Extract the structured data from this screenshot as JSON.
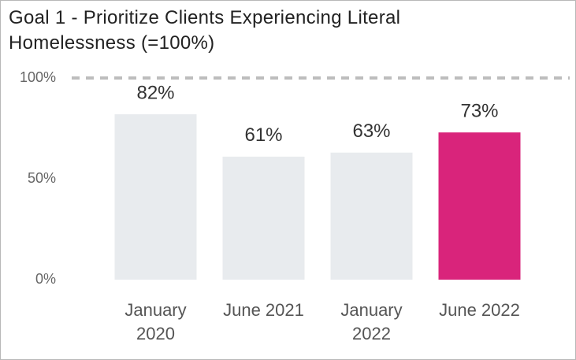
{
  "chart_data": {
    "type": "bar",
    "title": "Goal 1 - Prioritize Clients Experiencing Literal Homelessness (=100%)",
    "categories": [
      "January 2020",
      "June 2021",
      "January 2022",
      "June 2022"
    ],
    "values": [
      82,
      61,
      63,
      73
    ],
    "value_labels": [
      "82%",
      "61%",
      "63%",
      "73%"
    ],
    "colors": [
      "#e8ebee",
      "#e8ebee",
      "#e8ebee",
      "#d9247b"
    ],
    "ylim": [
      0,
      100
    ],
    "yticks": [
      {
        "value": 0,
        "label": "0%"
      },
      {
        "value": 50,
        "label": "50%"
      },
      {
        "value": 100,
        "label": "100%"
      }
    ],
    "reference_line": 100,
    "grid": false
  }
}
